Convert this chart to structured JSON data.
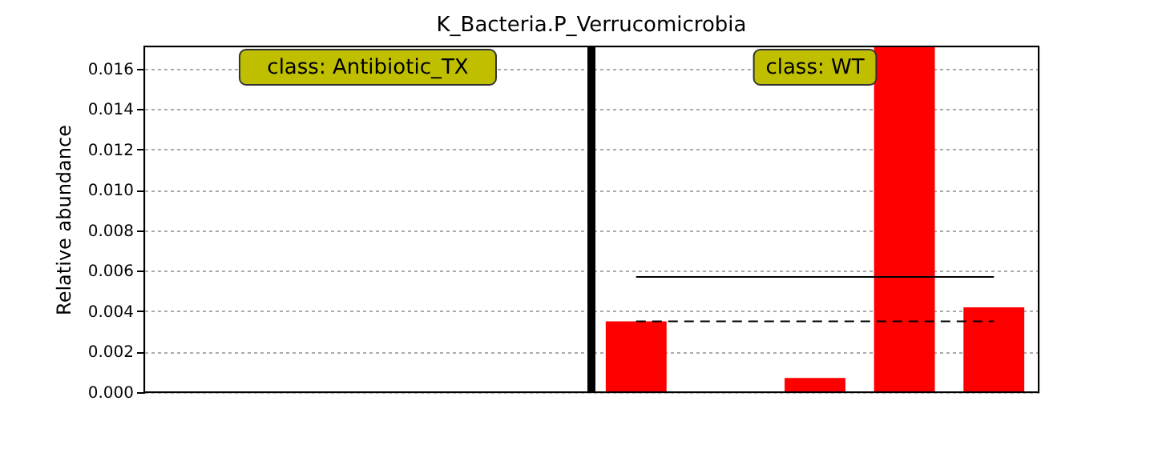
{
  "chart_data": {
    "type": "bar",
    "title": "K_Bacteria.P_Verrucomicrobia",
    "ylabel": "Relative abundance",
    "categories": [
      null,
      null,
      null,
      null,
      null,
      null,
      null,
      null,
      null,
      null
    ],
    "series": [
      {
        "color": "#ff0000",
        "values": [
          0,
          0,
          0,
          0,
          0,
          0.0035,
          0,
          0.0007,
          0.0171,
          0.0042
        ]
      }
    ],
    "ylim": [
      0,
      0.0171
    ],
    "yticks": [
      {
        "value": 0,
        "label": "0.000"
      },
      {
        "value": 0.002,
        "label": "0.002"
      },
      {
        "value": 0.004,
        "label": "0.004"
      },
      {
        "value": 0.006,
        "label": "0.006"
      },
      {
        "value": 0.008,
        "label": "0.008"
      },
      {
        "value": 0.01,
        "label": "0.010"
      },
      {
        "value": 0.012,
        "label": "0.012"
      },
      {
        "value": 0.014,
        "label": "0.014"
      },
      {
        "value": 0.016,
        "label": "0.016"
      }
    ],
    "tick_labels": "y",
    "grid": "y",
    "legend": false,
    "ref_lines": [
      {
        "axis": "y",
        "value": 0.0057,
        "color": "#000000",
        "line_style": "solid"
      },
      {
        "axis": "y",
        "value": 0.0035,
        "color": "#000000",
        "line_style": "dashed"
      }
    ],
    "annotations": [
      "class: Antibiotic_TX",
      "class: WT"
    ]
  }
}
